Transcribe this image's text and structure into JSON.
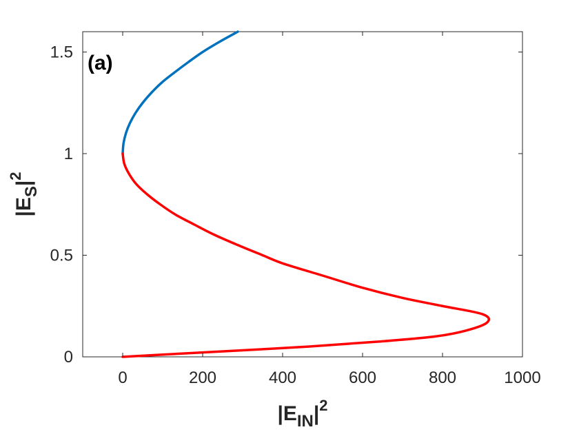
{
  "chart_data": {
    "type": "line",
    "annotation": "(a)",
    "xlabel": {
      "main": "|E",
      "sub": "IN",
      "rest": "|",
      "sup": "2"
    },
    "ylabel": {
      "main": "|E",
      "sub": "S",
      "rest": "|",
      "sup": "2"
    },
    "xlim": [
      -100,
      1000
    ],
    "ylim": [
      0,
      1.6
    ],
    "xticks": [
      0,
      200,
      400,
      600,
      800,
      1000
    ],
    "xtick_labels": [
      "0",
      "200",
      "400",
      "600",
      "800",
      "1000"
    ],
    "yticks": [
      0,
      0.5,
      1,
      1.5
    ],
    "ytick_labels": [
      "0",
      "0.5",
      "1",
      "1.5"
    ],
    "grid": false,
    "legend": "none",
    "series": [
      {
        "color": "#0072BD",
        "points": [
          [
            0,
            1.0
          ],
          [
            2,
            1.05
          ],
          [
            8,
            1.1
          ],
          [
            18,
            1.15
          ],
          [
            32,
            1.2
          ],
          [
            50,
            1.25
          ],
          [
            72,
            1.3
          ],
          [
            98,
            1.35
          ],
          [
            130,
            1.4
          ],
          [
            164,
            1.45
          ],
          [
            200,
            1.5
          ],
          [
            242,
            1.55
          ],
          [
            288,
            1.6
          ]
        ]
      },
      {
        "color": "#FF0000",
        "points": [
          [
            0,
            1.0
          ],
          [
            4,
            0.95
          ],
          [
            16,
            0.9
          ],
          [
            34,
            0.85
          ],
          [
            61,
            0.8
          ],
          [
            94,
            0.75
          ],
          [
            132,
            0.7
          ],
          [
            180,
            0.65
          ],
          [
            230,
            0.6
          ],
          [
            288,
            0.55
          ],
          [
            350,
            0.5
          ],
          [
            400,
            0.46
          ],
          [
            500,
            0.4
          ],
          [
            600,
            0.34
          ],
          [
            700,
            0.29
          ],
          [
            800,
            0.25
          ],
          [
            900,
            0.21
          ],
          [
            912,
            0.17
          ],
          [
            860,
            0.13
          ],
          [
            780,
            0.1
          ],
          [
            640,
            0.075
          ],
          [
            460,
            0.05
          ],
          [
            260,
            0.028
          ],
          [
            100,
            0.011
          ],
          [
            0,
            0.0
          ]
        ]
      }
    ]
  }
}
